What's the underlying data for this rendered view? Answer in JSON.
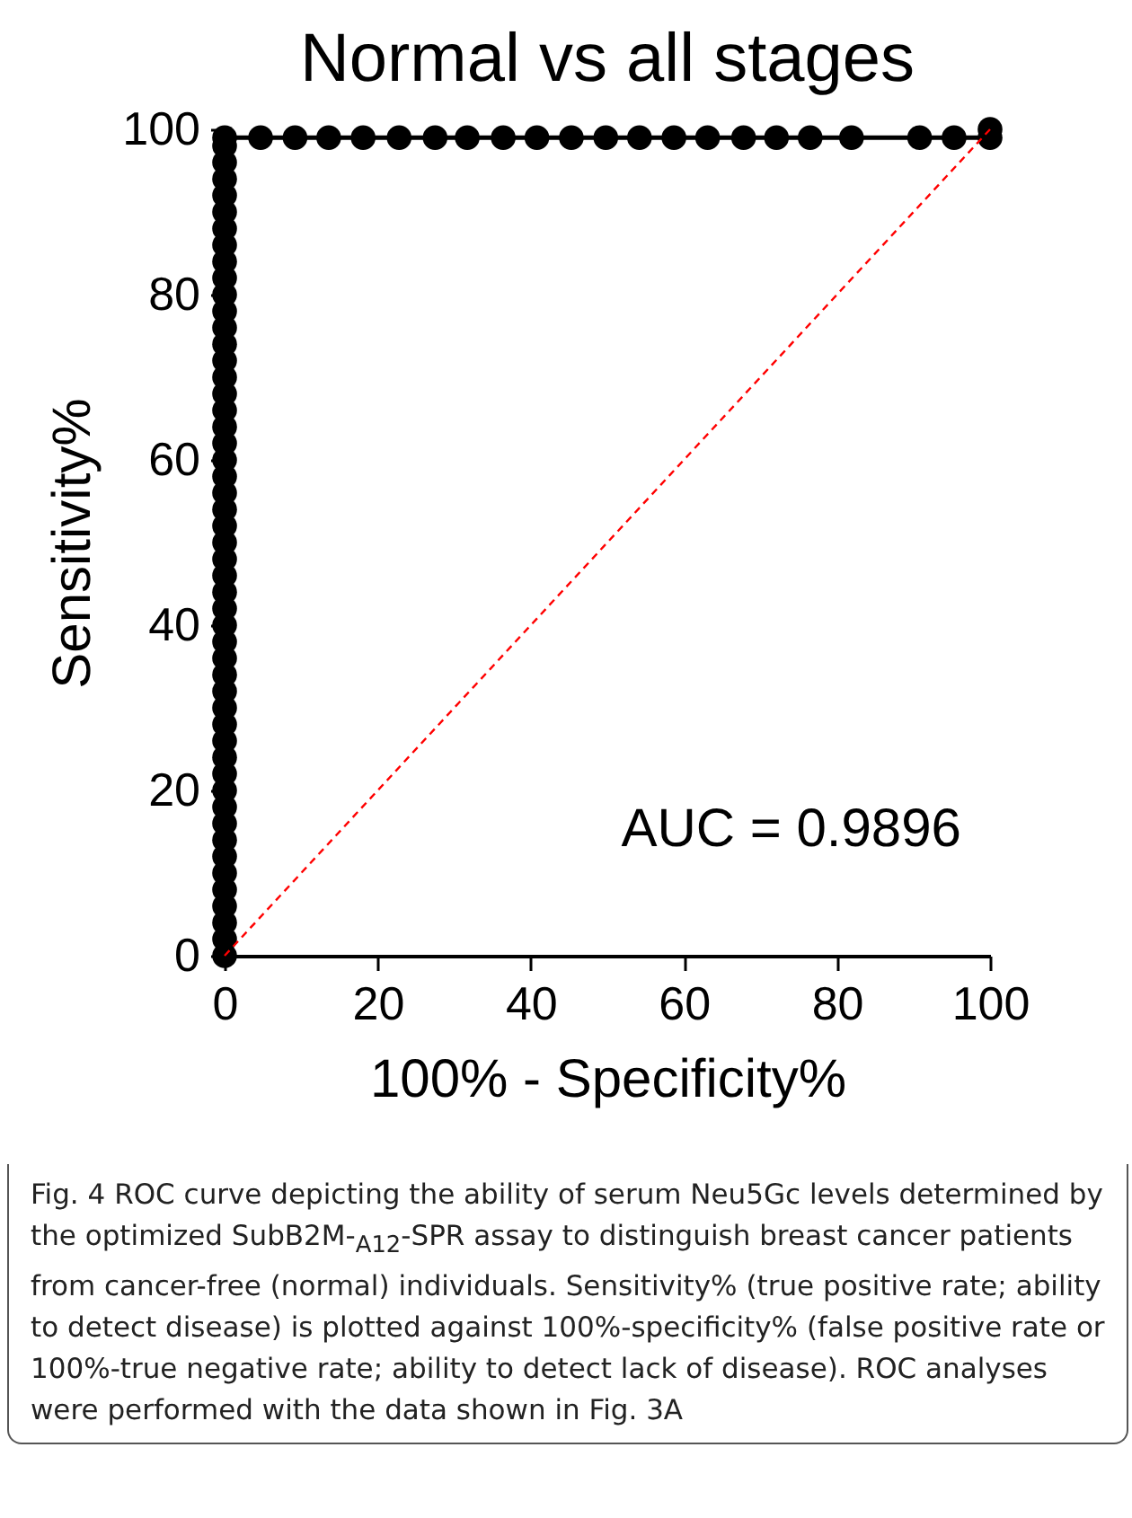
{
  "chart_data": {
    "type": "line",
    "title": "Normal vs all stages",
    "xlabel": "100% - Specificity%",
    "ylabel": "Sensitivity%",
    "xlim": [
      0,
      100
    ],
    "ylim": [
      0,
      100
    ],
    "xticks": [
      0,
      20,
      40,
      60,
      80,
      100
    ],
    "yticks": [
      0,
      20,
      40,
      60,
      80,
      100
    ],
    "series": [
      {
        "color": "#000000",
        "marker": "circle",
        "line_style": "solid",
        "x": [
          0,
          0,
          0,
          0,
          0,
          0,
          0,
          0,
          0,
          0,
          0,
          0,
          0,
          0,
          0,
          0,
          0,
          0,
          0,
          0,
          0,
          0,
          0,
          0,
          0,
          0,
          0,
          0,
          0,
          0,
          0,
          0,
          0,
          0,
          0,
          0,
          0,
          0,
          0,
          0,
          0,
          0,
          0,
          0,
          0,
          0,
          0,
          0,
          0,
          0,
          0,
          4.7,
          9.2,
          13.6,
          18.1,
          22.8,
          27.5,
          31.7,
          36.4,
          40.8,
          45.3,
          49.8,
          54.2,
          58.7,
          63.1,
          67.8,
          72.1,
          76.5,
          81.9,
          90.8,
          95.3,
          100,
          100
        ],
        "values": [
          0,
          2,
          4,
          6,
          8,
          10,
          12,
          14,
          16,
          18,
          20,
          22,
          24,
          26,
          28,
          30,
          32,
          34,
          36,
          38,
          40,
          42,
          44,
          46,
          48,
          50,
          52,
          54,
          56,
          58,
          60,
          62,
          64,
          66,
          68,
          70,
          72,
          74,
          76,
          78,
          80,
          82,
          84,
          86,
          88,
          90,
          92,
          94,
          96,
          98,
          99,
          99,
          99,
          99,
          99,
          99,
          99,
          99,
          99,
          99,
          99,
          99,
          99,
          99,
          99,
          99,
          99,
          99,
          99,
          99,
          99,
          99,
          100
        ]
      },
      {
        "type": "line",
        "color": "#ff0000",
        "x": [
          0,
          100
        ],
        "values": [
          0,
          100
        ],
        "marker": "none",
        "line_style": "dashed"
      }
    ],
    "annotations": [
      "AUC = 0.9896",
      "Fig. 4  ROC curve depicting the ability of serum Neu5Gc levels determined by the optimized SubB2M-$_{A12}$-SPR assay to distinguish breast cancer patients from cancer-free (normal) individuals. Sensitivity% (true positive rate; ability to detect disease) is plotted against 100%-specificity% (false positive rate or 100%-true negative rate; ability to detect lack of disease). ROC analyses were performed with the data shown in Fig. 3A"
    ]
  }
}
